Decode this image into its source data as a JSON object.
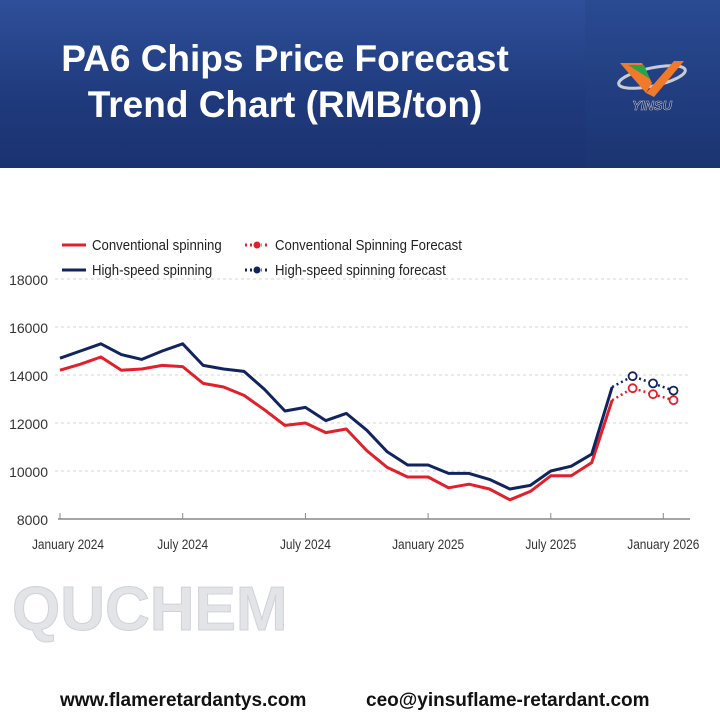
{
  "header": {
    "title_line1": "PA6 Chips Price Forecast",
    "title_line2": "Trend Chart (RMB/ton)",
    "logo_text": "YINSU",
    "background_color": "#1f3a7c"
  },
  "watermark": "QUCHEM",
  "footer": {
    "website": "www.flameretardantys.com",
    "email": "ceo@yinsuflame-retardant.com"
  },
  "chart_data": {
    "type": "line",
    "title": "",
    "xlabel": "",
    "ylabel": "",
    "ylim": [
      8000,
      18000
    ],
    "yticks": [
      8000,
      10000,
      12000,
      14000,
      16000,
      18000
    ],
    "grid": "horizontal dashed",
    "legend_position": "top-left",
    "xticks": [
      {
        "index": 0,
        "label": "January 2024"
      },
      {
        "index": 6,
        "label": "July 2024"
      },
      {
        "index": 12,
        "label": "July 2024"
      },
      {
        "index": 18,
        "label": "January 2025"
      },
      {
        "index": 24,
        "label": "July 2025"
      },
      {
        "index": 29.5,
        "label": "January 2026"
      }
    ],
    "series": [
      {
        "name": "Conventional spinning",
        "color": "#e0202a",
        "style": "solid",
        "start_index": 0,
        "values": [
          14200,
          14450,
          14750,
          14200,
          14250,
          14400,
          14350,
          13650,
          13500,
          13150,
          12550,
          11900,
          12000,
          11600,
          11750,
          10850,
          10150,
          9750,
          9750,
          9300,
          9450,
          9250,
          8800,
          9150,
          9800,
          9800,
          10350,
          12950
        ]
      },
      {
        "name": "High-speed spinning",
        "color": "#12245e",
        "style": "solid",
        "start_index": 0,
        "values": [
          14700,
          15000,
          15300,
          14850,
          14650,
          15000,
          15300,
          14400,
          14250,
          14150,
          13400,
          12500,
          12650,
          12100,
          12400,
          11700,
          10800,
          10250,
          10250,
          9900,
          9900,
          9650,
          9250,
          9400,
          10000,
          10200,
          10700,
          13500
        ]
      },
      {
        "name": "Conventional Spinning Forecast",
        "color": "#e0202a",
        "style": "dotted",
        "start_index": 27,
        "values": [
          12950,
          13450,
          13200,
          12950
        ]
      },
      {
        "name": "High-speed spinning forecast",
        "color": "#12245e",
        "style": "dotted",
        "start_index": 27,
        "values": [
          13500,
          13950,
          13650,
          13350
        ]
      }
    ]
  }
}
